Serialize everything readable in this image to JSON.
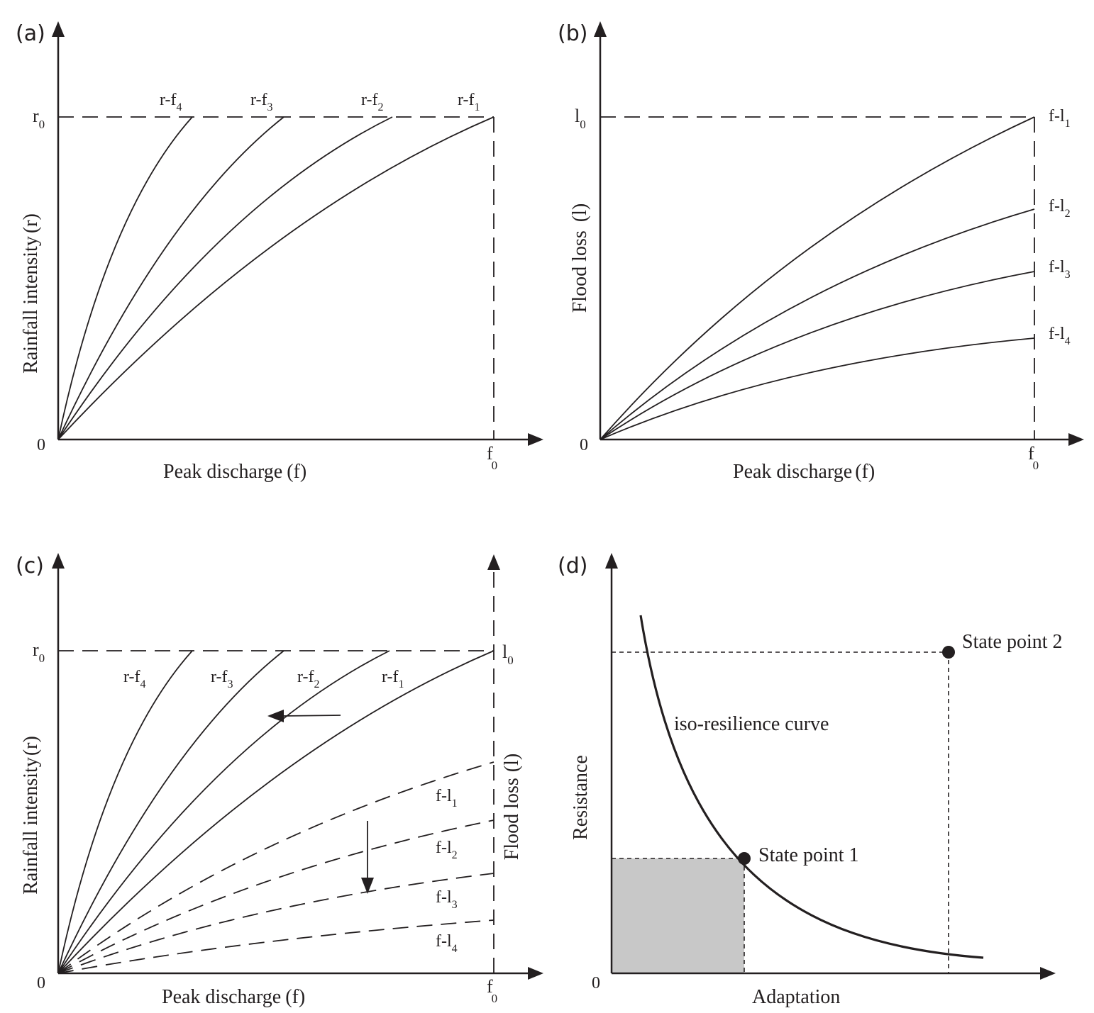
{
  "panels": {
    "a": {
      "tag": "(a)",
      "y_axis_label": "Rainfall intensity",
      "y_axis_unit": "(r)",
      "x_axis_label": "Peak discharge",
      "x_axis_unit": "(f)",
      "origin": "0",
      "y_mark": {
        "base": "r",
        "sub": "0"
      },
      "x_mark": {
        "base": "f",
        "sub": "0"
      },
      "curves": [
        {
          "base": "r-f",
          "sub": "4"
        },
        {
          "base": "r-f",
          "sub": "3"
        },
        {
          "base": "r-f",
          "sub": "2"
        },
        {
          "base": "r-f",
          "sub": "1"
        }
      ]
    },
    "b": {
      "tag": "(b)",
      "y_axis_label": "Flood loss",
      "y_axis_unit": "(l)",
      "x_axis_label": "Peak discharge",
      "x_axis_unit": "(f)",
      "origin": "0",
      "y_mark": {
        "base": "l",
        "sub": "0"
      },
      "x_mark": {
        "base": "f",
        "sub": "0"
      },
      "curves": [
        {
          "base": "f-l",
          "sub": "1"
        },
        {
          "base": "f-l",
          "sub": "2"
        },
        {
          "base": "f-l",
          "sub": "3"
        },
        {
          "base": "f-l",
          "sub": "4"
        }
      ]
    },
    "c": {
      "tag": "(c)",
      "y_axis_label": "Rainfall intensity",
      "y_axis_unit": "(r)",
      "y2_axis_label": "Flood loss",
      "y2_axis_unit": "(l)",
      "x_axis_label": "Peak discharge",
      "x_axis_unit": "(f)",
      "origin": "0",
      "y_mark": {
        "base": "r",
        "sub": "0"
      },
      "y2_mark": {
        "base": "l",
        "sub": "0"
      },
      "x_mark": {
        "base": "f",
        "sub": "0"
      },
      "rf_curves": [
        {
          "base": "r-f",
          "sub": "4"
        },
        {
          "base": "r-f",
          "sub": "3"
        },
        {
          "base": "r-f",
          "sub": "2"
        },
        {
          "base": "r-f",
          "sub": "1"
        }
      ],
      "fl_curves": [
        {
          "base": "f-l",
          "sub": "1"
        },
        {
          "base": "f-l",
          "sub": "2"
        },
        {
          "base": "f-l",
          "sub": "3"
        },
        {
          "base": "f-l",
          "sub": "4"
        }
      ]
    },
    "d": {
      "tag": "(d)",
      "y_axis_label": "Resistance",
      "x_axis_label": "Adaptation",
      "origin": "0",
      "curve_label": "iso-resilience curve",
      "state_point_1": "State point 1",
      "state_point_2": "State point 2",
      "shaded_color": "#c8c8c8"
    }
  },
  "colors": {
    "ink": "#231f20",
    "background": "#ffffff"
  }
}
